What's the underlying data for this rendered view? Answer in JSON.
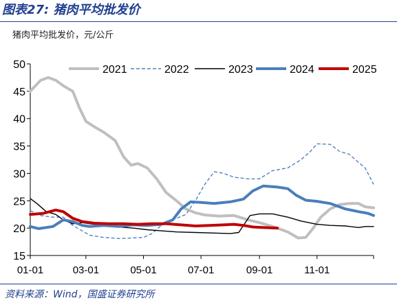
{
  "header": {
    "figure_title": "图表27: 猪肉平均批发价",
    "unit_label": "猪肉平均批发价，元/公斤"
  },
  "footer": {
    "source": "资料来源：Wind，国盛证券研究所"
  },
  "colors": {
    "title_blue": "#1f3f8f",
    "series_2021": "#bfbfbf",
    "series_2022": "#4f81bd",
    "series_2023": "#000000",
    "series_2024": "#4a7ebb",
    "series_2025": "#c00000"
  },
  "chart_data": {
    "type": "line",
    "x_unit": "day-of-year (MM-DD)",
    "x_range": [
      "01-01",
      "12-31"
    ],
    "xticks": [
      "01-01",
      "03-01",
      "05-01",
      "07-01",
      "09-01",
      "11-01"
    ],
    "ylim": [
      15,
      50
    ],
    "yticks": [
      15,
      20,
      25,
      30,
      35,
      40,
      45,
      50
    ],
    "legend": "top",
    "grid": false,
    "series": [
      {
        "name": "2021",
        "style": "solid-thick",
        "color": "#bfbfbf",
        "points": [
          [
            "01-01",
            45
          ],
          [
            "01-12",
            47
          ],
          [
            "01-20",
            47.5
          ],
          [
            "01-28",
            47
          ],
          [
            "02-05",
            46
          ],
          [
            "02-15",
            45
          ],
          [
            "02-22",
            42
          ],
          [
            "03-01",
            39.5
          ],
          [
            "03-10",
            38.5
          ],
          [
            "03-20",
            37.5
          ],
          [
            "04-01",
            36
          ],
          [
            "04-10",
            33
          ],
          [
            "04-18",
            31.5
          ],
          [
            "04-25",
            31.8
          ],
          [
            "05-05",
            31
          ],
          [
            "05-15",
            29
          ],
          [
            "05-25",
            26.5
          ],
          [
            "06-05",
            25
          ],
          [
            "06-15",
            23.5
          ],
          [
            "06-25",
            22.8
          ],
          [
            "07-05",
            22.4
          ],
          [
            "07-20",
            22.2
          ],
          [
            "08-05",
            22.3
          ],
          [
            "08-20",
            21.5
          ],
          [
            "09-01",
            21
          ],
          [
            "09-15",
            20.3
          ],
          [
            "10-01",
            19.3
          ],
          [
            "10-12",
            18.2
          ],
          [
            "10-20",
            18.3
          ],
          [
            "10-28",
            20
          ],
          [
            "11-05",
            22
          ],
          [
            "11-15",
            23.5
          ],
          [
            "11-25",
            24.3
          ],
          [
            "12-05",
            24.5
          ],
          [
            "12-15",
            24.5
          ],
          [
            "12-22",
            23.9
          ],
          [
            "12-31",
            23.7
          ]
        ]
      },
      {
        "name": "2022",
        "style": "dashed",
        "color": "#4f81bd",
        "points": [
          [
            "01-01",
            23.2
          ],
          [
            "01-12",
            22.3
          ],
          [
            "01-25",
            22
          ],
          [
            "02-05",
            22
          ],
          [
            "02-15",
            20.5
          ],
          [
            "02-25",
            19.5
          ],
          [
            "03-05",
            18.7
          ],
          [
            "03-20",
            18.3
          ],
          [
            "04-05",
            18.1
          ],
          [
            "04-20",
            18.2
          ],
          [
            "05-01",
            18.3
          ],
          [
            "05-10",
            19
          ],
          [
            "05-20",
            20.5
          ],
          [
            "06-01",
            21.5
          ],
          [
            "06-15",
            22.5
          ],
          [
            "06-25",
            25
          ],
          [
            "07-05",
            28
          ],
          [
            "07-15",
            30.3
          ],
          [
            "07-25",
            30
          ],
          [
            "08-05",
            29.3
          ],
          [
            "08-20",
            29
          ],
          [
            "09-01",
            29
          ],
          [
            "09-15",
            30.5
          ],
          [
            "10-01",
            31
          ],
          [
            "10-15",
            32.5
          ],
          [
            "10-25",
            34
          ],
          [
            "11-01",
            35.4
          ],
          [
            "11-15",
            35.3
          ],
          [
            "11-25",
            34
          ],
          [
            "12-05",
            33.5
          ],
          [
            "12-15",
            32
          ],
          [
            "12-22",
            31
          ],
          [
            "12-31",
            28
          ]
        ]
      },
      {
        "name": "2023",
        "style": "solid-thin",
        "color": "#000000",
        "points": [
          [
            "01-01",
            25.4
          ],
          [
            "01-08",
            24.5
          ],
          [
            "01-18",
            23
          ],
          [
            "01-28",
            22.5
          ],
          [
            "02-05",
            21.5
          ],
          [
            "02-15",
            20.8
          ],
          [
            "02-25",
            21
          ],
          [
            "03-05",
            20.8
          ],
          [
            "03-20",
            20.5
          ],
          [
            "04-05",
            20.2
          ],
          [
            "04-20",
            20
          ],
          [
            "05-05",
            19.7
          ],
          [
            "05-20",
            19.5
          ],
          [
            "06-05",
            19.3
          ],
          [
            "06-25",
            19.2
          ],
          [
            "07-15",
            19.1
          ],
          [
            "08-01",
            19
          ],
          [
            "08-10",
            19.2
          ],
          [
            "08-15",
            20.5
          ],
          [
            "08-22",
            22.3
          ],
          [
            "09-01",
            22.6
          ],
          [
            "09-15",
            22.6
          ],
          [
            "10-01",
            22
          ],
          [
            "10-15",
            21.3
          ],
          [
            "11-01",
            20.7
          ],
          [
            "11-15",
            20.5
          ],
          [
            "12-01",
            20.4
          ],
          [
            "12-15",
            20.1
          ],
          [
            "12-22",
            20.3
          ],
          [
            "12-31",
            20.3
          ]
        ]
      },
      {
        "name": "2024",
        "style": "solid-thick",
        "color": "#4a7ebb",
        "points": [
          [
            "01-01",
            20.3
          ],
          [
            "01-10",
            19.9
          ],
          [
            "01-25",
            20.3
          ],
          [
            "02-05",
            21.5
          ],
          [
            "02-15",
            21.2
          ],
          [
            "02-25",
            20.5
          ],
          [
            "03-05",
            20.3
          ],
          [
            "03-20",
            20.5
          ],
          [
            "04-05",
            20.3
          ],
          [
            "04-20",
            20.6
          ],
          [
            "05-05",
            20.5
          ],
          [
            "05-20",
            20.7
          ],
          [
            "06-01",
            21.5
          ],
          [
            "06-10",
            23.5
          ],
          [
            "06-20",
            24.8
          ],
          [
            "07-01",
            24.7
          ],
          [
            "07-15",
            24.5
          ],
          [
            "08-01",
            24.8
          ],
          [
            "08-15",
            25.3
          ],
          [
            "08-25",
            26.8
          ],
          [
            "09-05",
            27.7
          ],
          [
            "09-20",
            27.5
          ],
          [
            "10-01",
            27.2
          ],
          [
            "10-10",
            26
          ],
          [
            "10-20",
            25.1
          ],
          [
            "11-01",
            24.9
          ],
          [
            "11-15",
            24.5
          ],
          [
            "12-01",
            23.5
          ],
          [
            "12-15",
            23
          ],
          [
            "12-25",
            22.7
          ],
          [
            "12-31",
            22.3
          ]
        ]
      },
      {
        "name": "2025",
        "style": "solid-thick",
        "color": "#c00000",
        "points": [
          [
            "01-01",
            22.5
          ],
          [
            "01-15",
            22.7
          ],
          [
            "01-28",
            23.3
          ],
          [
            "02-05",
            23
          ],
          [
            "02-15",
            21.8
          ],
          [
            "02-25",
            21.2
          ],
          [
            "03-10",
            20.9
          ],
          [
            "03-25",
            20.8
          ],
          [
            "04-10",
            20.8
          ],
          [
            "04-25",
            20.7
          ],
          [
            "05-10",
            20.8
          ],
          [
            "05-25",
            20.8
          ],
          [
            "06-10",
            20.6
          ],
          [
            "06-25",
            20.4
          ],
          [
            "07-10",
            20.5
          ],
          [
            "07-25",
            20.6
          ],
          [
            "08-05",
            20.7
          ],
          [
            "08-15",
            20.5
          ],
          [
            "08-25",
            20.2
          ],
          [
            "09-05",
            20.1
          ],
          [
            "09-20",
            20
          ]
        ]
      }
    ]
  }
}
